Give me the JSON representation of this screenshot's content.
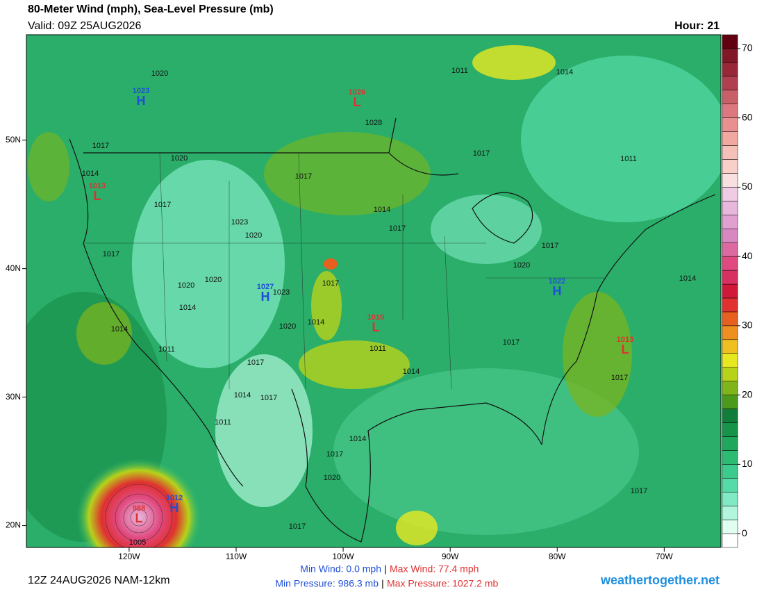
{
  "header": {
    "title": "80-Meter Wind (mph), Sea-Level Pressure (mb)",
    "valid": "Valid: 09Z 25AUG2026",
    "hour": "Hour: 21"
  },
  "map": {
    "xlim": [
      -129.6,
      -64.7
    ],
    "ylim": [
      18.3,
      58.2
    ],
    "xticks": [
      {
        "value": -120,
        "label": "120W"
      },
      {
        "value": -110,
        "label": "110W"
      },
      {
        "value": -100,
        "label": "100W"
      },
      {
        "value": -90,
        "label": "90W"
      },
      {
        "value": -80,
        "label": "80W"
      },
      {
        "value": -70,
        "label": "70W"
      }
    ],
    "yticks": [
      {
        "value": 50,
        "label": "50N"
      },
      {
        "value": 40,
        "label": "40N"
      },
      {
        "value": 30,
        "label": "30N"
      },
      {
        "value": 20,
        "label": "20N"
      }
    ],
    "high_color": "#1f4fd8",
    "low_color": "#e03030",
    "centers": [
      {
        "type": "H",
        "pressure": 1023
      },
      {
        "type": "L",
        "pressure": 1026
      },
      {
        "type": "L",
        "pressure": 1013
      },
      {
        "type": "H",
        "pressure": 1027
      },
      {
        "type": "L",
        "pressure": 1010
      },
      {
        "type": "H",
        "pressure": 1022
      },
      {
        "type": "L",
        "pressure": 1013
      },
      {
        "type": "H",
        "pressure": 1012
      },
      {
        "type": "L",
        "pressure": 988
      }
    ],
    "isobar_labels": [
      1020,
      1011,
      1014,
      1028,
      1017,
      1020,
      1017,
      1011,
      1017,
      1014,
      1017,
      1014,
      1017,
      1023,
      1020,
      1017,
      1017,
      1020,
      1020,
      1020,
      1023,
      1017,
      1014,
      1014,
      1020,
      1014,
      1014,
      1011,
      1017,
      1011,
      1017,
      1014,
      1017,
      1014,
      1017,
      1011,
      1014,
      1017,
      1020,
      1017,
      1017,
      1005
    ]
  },
  "colorbar": {
    "levels": [
      -2,
      0,
      2,
      4,
      6,
      8,
      10,
      12,
      14,
      16,
      18,
      20,
      22,
      24,
      26,
      28,
      30,
      32,
      34,
      36,
      38,
      40,
      42,
      44,
      46,
      48,
      50,
      52,
      54,
      56,
      58,
      60,
      62,
      64,
      66,
      68,
      70,
      72
    ],
    "colors": [
      "#ffffff",
      "#e0fff0",
      "#b0f5dc",
      "#80eac4",
      "#55dba8",
      "#3ccb8c",
      "#2bbb72",
      "#1fa85c",
      "#17934a",
      "#107e3a",
      "#4c9a1c",
      "#7fb51a",
      "#b8d21a",
      "#e8e820",
      "#f0c020",
      "#ee9020",
      "#e86020",
      "#e03030",
      "#d01838",
      "#d83060",
      "#e04a80",
      "#dc6aa0",
      "#d888c0",
      "#e0a0d0",
      "#e8b8dc",
      "#f0cce4",
      "#f8e0e0",
      "#f8d0c8",
      "#f4c0b8",
      "#f0a8a0",
      "#e89090",
      "#dc7880",
      "#c86068",
      "#b04050",
      "#982838",
      "#801828",
      "#600010"
    ],
    "ticks": [
      0,
      10,
      20,
      30,
      40,
      50,
      60,
      70
    ]
  },
  "footer": {
    "run": "12Z 24AUG2026 NAM-12km",
    "min_wind": "Min Wind:  0.0 mph",
    "max_wind": "Max Wind:  77.4 mph",
    "min_pressure": "Min Pressure: 986.3 mb",
    "max_pressure": "Max Pressure: 1027.2 mb",
    "separator": "|",
    "site": "weathertogether.net"
  }
}
